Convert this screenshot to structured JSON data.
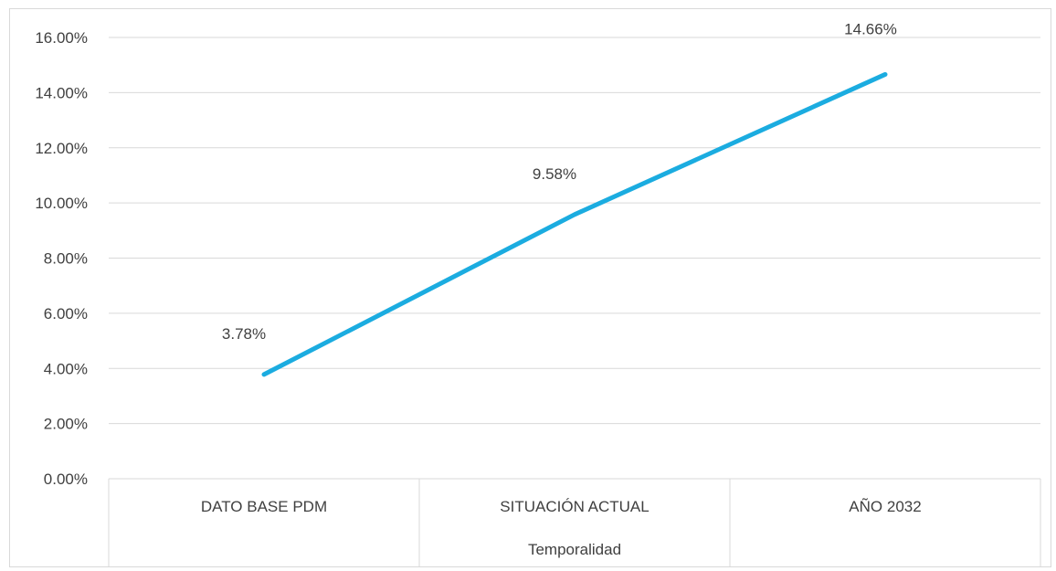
{
  "chart_data": {
    "type": "line",
    "categories": [
      "DATO BASE PDM",
      "SITUACIÓN ACTUAL",
      "AÑO 2032"
    ],
    "series": [
      {
        "values": [
          3.78,
          9.58,
          14.66
        ],
        "color": "#1BACE0"
      }
    ],
    "data_labels": [
      "3.78%",
      "9.58%",
      "14.66%"
    ],
    "y_ticks": [
      "0.00%",
      "2.00%",
      "4.00%",
      "6.00%",
      "8.00%",
      "10.00%",
      "12.00%",
      "14.00%",
      "16.00%"
    ],
    "ylim": [
      0,
      16
    ],
    "xlabel": "Temporalidad",
    "ylabel": "",
    "title": "",
    "grid": true,
    "legend": "none",
    "colors": {
      "line": "#1BACE0",
      "grid": "#d9d9d9",
      "text": "#404040"
    }
  }
}
